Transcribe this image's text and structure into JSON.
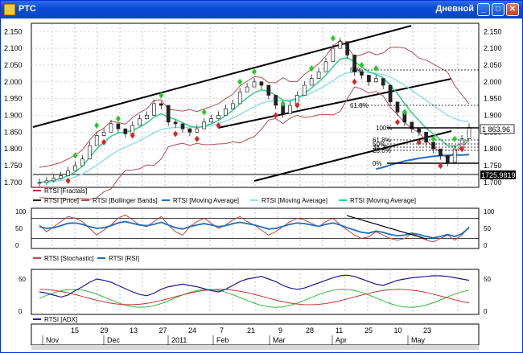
{
  "window": {
    "title": "РТС",
    "mode": "Дневной",
    "minimize_glyph": "_",
    "maximize_glyph": "□",
    "close_glyph": "✕"
  },
  "price_panel": {
    "yticks": [
      "2.150",
      "2.100",
      "2.050",
      "2.000",
      "1.950",
      "1.900",
      "1.850",
      "1.800",
      "1.750",
      "1.700"
    ],
    "yticks_values": [
      2150,
      2100,
      2050,
      2000,
      1950,
      1900,
      1850,
      1800,
      1750,
      1700
    ],
    "ylim": [
      1695,
      2165
    ],
    "price_label": "1 863.96",
    "low_label": "1725.9819",
    "low_value": 1725.98,
    "fib_labels": [
      "100%",
      "61.8%",
      "50%",
      "38.2%",
      "23.6%",
      "0%"
    ],
    "fib_upper_labels": [
      "50%",
      "61.8%"
    ],
    "legend": [
      {
        "label": "RTSI [Fractals]",
        "color": "#cc2222"
      },
      {
        "label": "RTSI [Price]",
        "color": "#222222"
      },
      {
        "label": "RTSI [Bollinger Bands]",
        "color": "#b05050"
      },
      {
        "label": "RTSI [Moving Average]",
        "color": "#1f6fbf"
      },
      {
        "label": "RTSI [Moving Average]",
        "color": "#8fe0e8"
      },
      {
        "label": "RTSI [Moving Average]",
        "color": "#33cc88"
      }
    ]
  },
  "oscillator_panel": {
    "yticks": [
      "100",
      "50",
      "0"
    ],
    "legend": [
      {
        "label": "RTSI [Stochastic]",
        "color": "#c04040"
      },
      {
        "label": "RTSI [RSI]",
        "color": "#1f6fbf"
      }
    ]
  },
  "adx_panel": {
    "yticks": [
      "50",
      "0"
    ],
    "legend": [
      {
        "label": "RTSI [ADX]",
        "color": "#1a1a9a"
      }
    ]
  },
  "x_axis": {
    "day_labels": [
      "15",
      "29",
      "13",
      "27",
      "24",
      "7",
      "21",
      "9",
      "28",
      "11",
      "25",
      "10",
      "23"
    ],
    "month_labels": [
      "Nov",
      "Dec",
      "2011",
      "Feb",
      "Mar",
      "Apr",
      "May"
    ]
  },
  "chart_data": {
    "type": "line",
    "title": "",
    "xlabel": "",
    "ylabel": "",
    "series": [
      {
        "name": "RTSI [Price]",
        "values": [
          1700,
          1705,
          1712,
          1720,
          1735,
          1750,
          1770,
          1810,
          1840,
          1850,
          1875,
          1860,
          1845,
          1870,
          1890,
          1900,
          1935,
          1930,
          1880,
          1875,
          1860,
          1850,
          1860,
          1880,
          1890,
          1900,
          1920,
          1935,
          1970,
          1985,
          2000,
          1990,
          1960,
          1930,
          1905,
          1930,
          1960,
          1990,
          2010,
          2030,
          2060,
          2100,
          2120,
          2080,
          2030,
          2020,
          2000,
          2010,
          1990,
          1940,
          1910,
          1880,
          1860,
          1850,
          1820,
          1800,
          1780,
          1760,
          1800,
          1830,
          1864
        ]
      },
      {
        "name": "RTSI [Moving Average] fast",
        "values": [
          1700,
          1703,
          1707,
          1712,
          1720,
          1732,
          1748,
          1775,
          1800,
          1820,
          1838,
          1848,
          1850,
          1856,
          1865,
          1878,
          1895,
          1905,
          1895,
          1888,
          1878,
          1868,
          1864,
          1868,
          1875,
          1885,
          1900,
          1915,
          1935,
          1952,
          1968,
          1976,
          1972,
          1960,
          1945,
          1942,
          1950,
          1965,
          1982,
          2000,
          2020,
          2045,
          2068,
          2072,
          2060,
          2045,
          2030,
          2022,
          2012,
          1990,
          1965,
          1935,
          1908,
          1885,
          1862,
          1845,
          1828,
          1810,
          1808,
          1815,
          1830
        ]
      },
      {
        "name": "RTSI [Moving Average] slow",
        "values": [
          1700,
          1701,
          1703,
          1706,
          1710,
          1716,
          1725,
          1738,
          1752,
          1767,
          1782,
          1795,
          1805,
          1815,
          1825,
          1836,
          1848,
          1858,
          1862,
          1864,
          1865,
          1864,
          1864,
          1866,
          1870,
          1875,
          1883,
          1892,
          1903,
          1915,
          1926,
          1936,
          1942,
          1944,
          1944,
          1946,
          1951,
          1958,
          1967,
          1978,
          1990,
          2004,
          2018,
          2027,
          2030,
          2030,
          2028,
          2026,
          2022,
          2014,
          2003,
          1990,
          1975,
          1960,
          1945,
          1930,
          1915,
          1900,
          1890,
          1884,
          1880
        ]
      },
      {
        "name": "RTSI [Moving Average] long",
        "values": [
          null,
          null,
          null,
          null,
          null,
          null,
          null,
          null,
          null,
          null,
          null,
          null,
          null,
          null,
          null,
          null,
          null,
          null,
          null,
          null,
          null,
          null,
          null,
          null,
          null,
          null,
          null,
          null,
          null,
          null,
          null,
          null,
          null,
          null,
          null,
          null,
          null,
          null,
          null,
          null,
          null,
          null,
          null,
          null,
          null,
          null,
          null,
          1740,
          1745,
          1752,
          1758,
          1764,
          1768,
          1772,
          1775,
          1778,
          1780,
          1781,
          1782,
          1782,
          1783
        ]
      },
      {
        "name": "RTSI [Stochastic]",
        "values": [
          60,
          40,
          55,
          70,
          85,
          80,
          70,
          50,
          30,
          45,
          60,
          80,
          90,
          75,
          60,
          55,
          70,
          85,
          60,
          40,
          30,
          55,
          70,
          80,
          65,
          50,
          60,
          75,
          85,
          70,
          60,
          45,
          30,
          40,
          55,
          70,
          80,
          75,
          65,
          55,
          70,
          80,
          60,
          45,
          30,
          20,
          25,
          40,
          30,
          20,
          15,
          20,
          35,
          25,
          15,
          10,
          20,
          30,
          15,
          30,
          55
        ]
      },
      {
        "name": "RTSI [RSI]",
        "values": [
          55,
          50,
          52,
          58,
          65,
          66,
          62,
          55,
          50,
          52,
          58,
          66,
          70,
          65,
          60,
          58,
          62,
          68,
          60,
          52,
          48,
          55,
          60,
          64,
          60,
          55,
          58,
          64,
          68,
          64,
          60,
          54,
          48,
          50,
          56,
          62,
          66,
          64,
          60,
          56,
          62,
          66,
          60,
          52,
          45,
          38,
          36,
          42,
          38,
          32,
          28,
          30,
          36,
          32,
          26,
          22,
          26,
          32,
          26,
          34,
          52
        ]
      },
      {
        "name": "RTSI [ADX]",
        "values": [
          30,
          28,
          25,
          22,
          25,
          32,
          38,
          45,
          50,
          48,
          45,
          40,
          35,
          30,
          26,
          24,
          28,
          34,
          38,
          40,
          42,
          40,
          38,
          35,
          32,
          30,
          34,
          40,
          46,
          50,
          52,
          54,
          50,
          46,
          40,
          36,
          34,
          36,
          40,
          44,
          48,
          52,
          55,
          56,
          54,
          50,
          46,
          42,
          40,
          44,
          48,
          50,
          52,
          53,
          54,
          55,
          55,
          54,
          52,
          50,
          48
        ]
      }
    ]
  }
}
